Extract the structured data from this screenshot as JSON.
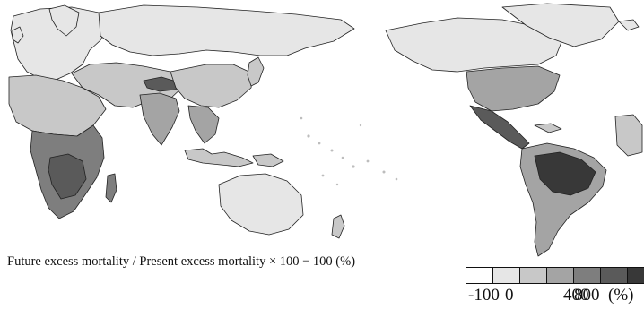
{
  "legend": {
    "caption": "Future excess mortality / Present excess mortality × 100 − 100 (%)",
    "bins": [
      {
        "color": "#ffffff"
      },
      {
        "color": "#e6e6e6"
      },
      {
        "color": "#c8c8c8"
      },
      {
        "color": "#a4a4a4"
      },
      {
        "color": "#7e7e7e"
      },
      {
        "color": "#5a5a5a"
      },
      {
        "color": "#383838"
      }
    ],
    "ticks": [
      "-100",
      "0",
      "400",
      "800"
    ],
    "unit": "(%)"
  },
  "map": {
    "projection": "Pacific-centered world map",
    "fill_levels": {
      "light": "#e6e6e6",
      "mid": "#c8c8c8",
      "midDark": "#a4a4a4",
      "dark": "#7e7e7e",
      "darker": "#5a5a5a",
      "darkest": "#383838"
    }
  }
}
